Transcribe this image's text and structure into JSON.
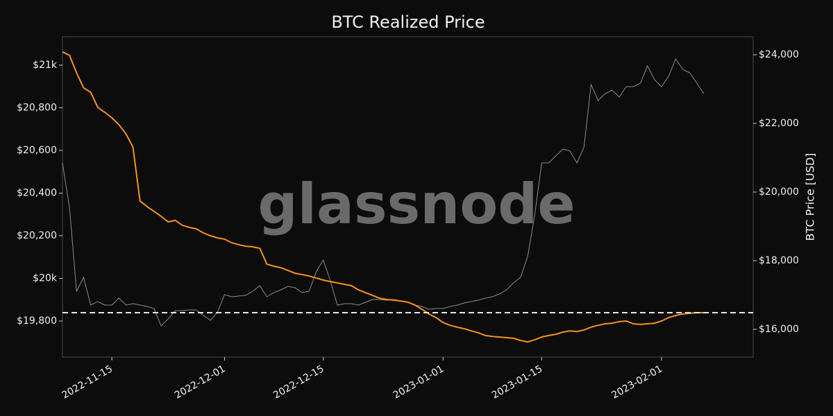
{
  "chart_data": {
    "type": "line",
    "title": "BTC Realized Price",
    "watermark": "glassnode",
    "y2label": "BTC Price [USD]",
    "x": [
      "2022-11-08",
      "2022-11-09",
      "2022-11-10",
      "2022-11-11",
      "2022-11-12",
      "2022-11-13",
      "2022-11-14",
      "2022-11-15",
      "2022-11-16",
      "2022-11-17",
      "2022-11-18",
      "2022-11-19",
      "2022-11-20",
      "2022-11-21",
      "2022-11-22",
      "2022-11-23",
      "2022-11-24",
      "2022-11-25",
      "2022-11-26",
      "2022-11-27",
      "2022-11-28",
      "2022-11-29",
      "2022-11-30",
      "2022-12-01",
      "2022-12-02",
      "2022-12-03",
      "2022-12-04",
      "2022-12-05",
      "2022-12-06",
      "2022-12-07",
      "2022-12-08",
      "2022-12-09",
      "2022-12-10",
      "2022-12-11",
      "2022-12-12",
      "2022-12-13",
      "2022-12-14",
      "2022-12-15",
      "2022-12-16",
      "2022-12-17",
      "2022-12-18",
      "2022-12-19",
      "2022-12-20",
      "2022-12-21",
      "2022-12-22",
      "2022-12-23",
      "2022-12-24",
      "2022-12-25",
      "2022-12-26",
      "2022-12-27",
      "2022-12-28",
      "2022-12-29",
      "2022-12-30",
      "2022-12-31",
      "2023-01-01",
      "2023-01-02",
      "2023-01-03",
      "2023-01-04",
      "2023-01-05",
      "2023-01-06",
      "2023-01-07",
      "2023-01-08",
      "2023-01-09",
      "2023-01-10",
      "2023-01-11",
      "2023-01-12",
      "2023-01-13",
      "2023-01-14",
      "2023-01-15",
      "2023-01-16",
      "2023-01-17",
      "2023-01-18",
      "2023-01-19",
      "2023-01-20",
      "2023-01-21",
      "2023-01-22",
      "2023-01-23",
      "2023-01-24",
      "2023-01-25",
      "2023-01-26",
      "2023-01-27",
      "2023-01-28",
      "2023-01-29",
      "2023-01-30",
      "2023-01-31",
      "2023-02-01",
      "2023-02-02",
      "2023-02-03",
      "2023-02-04",
      "2023-02-05",
      "2023-02-06",
      "2023-02-07"
    ],
    "series": [
      {
        "color": "#8c8c8c",
        "axis": "y2",
        "values": [
          20848,
          19535,
          17111,
          17515,
          16707,
          16808,
          16707,
          16707,
          16909,
          16707,
          16747,
          16707,
          16667,
          16606,
          16101,
          16303,
          16545,
          16545,
          16566,
          16566,
          16404,
          16263,
          16505,
          17010,
          16949,
          16970,
          16990,
          17111,
          17273,
          16949,
          17071,
          17151,
          17252,
          17212,
          17071,
          17111,
          17677,
          18020,
          17414,
          16707,
          16747,
          16747,
          16707,
          16788,
          16869,
          16869,
          16848,
          16869,
          16828,
          16788,
          16707,
          16667,
          16586,
          16606,
          16606,
          16667,
          16707,
          16768,
          16808,
          16848,
          16909,
          16949,
          17030,
          17151,
          17353,
          17515,
          18121,
          19333,
          20848,
          20848,
          21050,
          21252,
          21191,
          20848,
          21313,
          23131,
          22666,
          22868,
          22969,
          22767,
          23070,
          23070,
          23171,
          23676,
          23272,
          23070,
          23373,
          23878,
          23575,
          23474,
          23171,
          22868
        ]
      },
      {
        "color": "#f7931a",
        "values": [
          21062,
          21046,
          20964,
          20893,
          20873,
          20802,
          20779,
          20753,
          20721,
          20678,
          20616,
          20363,
          20337,
          20314,
          20291,
          20265,
          20272,
          20249,
          20239,
          20232,
          20213,
          20200,
          20190,
          20184,
          20167,
          20158,
          20151,
          20148,
          20141,
          20067,
          20057,
          20050,
          20037,
          20024,
          20018,
          20011,
          20002,
          19992,
          19985,
          19979,
          19972,
          19966,
          19946,
          19933,
          19920,
          19907,
          19901,
          19898,
          19894,
          19888,
          19875,
          19855,
          19833,
          19816,
          19793,
          19780,
          19771,
          19764,
          19754,
          19745,
          19732,
          19728,
          19725,
          19722,
          19719,
          19709,
          19702,
          19712,
          19725,
          19732,
          19738,
          19748,
          19754,
          19751,
          19758,
          19771,
          19780,
          19787,
          19790,
          19797,
          19800,
          19787,
          19784,
          19787,
          19790,
          19800,
          19816,
          19826,
          19833,
          19836,
          19839,
          19839
        ]
      }
    ],
    "hline": 19839,
    "xlim": [
      "2022-11-08",
      "2023-02-14"
    ],
    "xticks": [
      "2022-11-15",
      "2022-12-01",
      "2022-12-15",
      "2023-01-01",
      "2023-01-15",
      "2023-02-01"
    ],
    "ylim": [
      19631,
      21133
    ],
    "yticks": [
      {
        "value": 19800,
        "label": "$19,800"
      },
      {
        "value": 20000,
        "label": "$20k"
      },
      {
        "value": 20200,
        "label": "$20,200"
      },
      {
        "value": 20400,
        "label": "$20,400"
      },
      {
        "value": 20600,
        "label": "$20,600"
      },
      {
        "value": 20800,
        "label": "$20,800"
      },
      {
        "value": 21000,
        "label": "$21k"
      }
    ],
    "y2lim": [
      15192,
      24525
    ],
    "y2ticks": [
      {
        "value": 16000,
        "label": "$16,000"
      },
      {
        "value": 18000,
        "label": "$18,000"
      },
      {
        "value": 20000,
        "label": "$20,000"
      },
      {
        "value": 22000,
        "label": "$22,000"
      },
      {
        "value": 24000,
        "label": "$24,000"
      }
    ]
  }
}
